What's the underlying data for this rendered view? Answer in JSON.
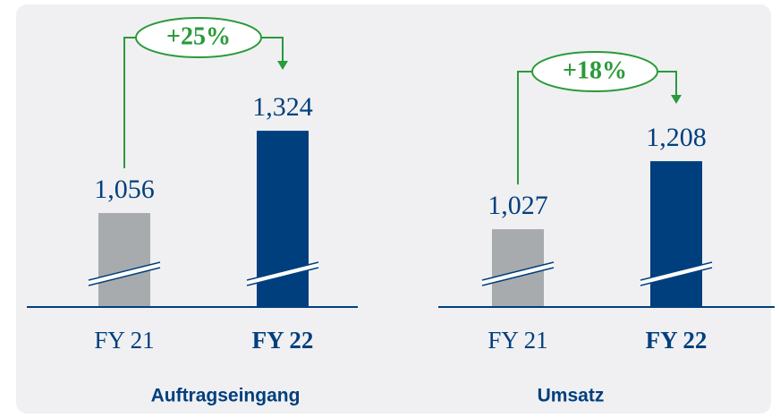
{
  "chart_data": [
    {
      "type": "bar",
      "xlabel": "Auftragseingang",
      "annotation": "+25%",
      "categories": [
        "FY 21",
        "FY 22"
      ],
      "values": [
        1056,
        1324
      ],
      "value_labels": [
        "1,056",
        "1,324"
      ],
      "colors": [
        "#a7abae",
        "#003f7d"
      ],
      "ylim": [
        750,
        1575
      ]
    },
    {
      "type": "bar",
      "xlabel": "Umsatz",
      "annotation": "+18%",
      "categories": [
        "FY 21",
        "FY 22"
      ],
      "values": [
        1027,
        1208
      ],
      "value_labels": [
        "1,027",
        "1,208"
      ],
      "colors": [
        "#a7abae",
        "#003f7d"
      ],
      "ylim": [
        820,
        1494
      ]
    }
  ]
}
